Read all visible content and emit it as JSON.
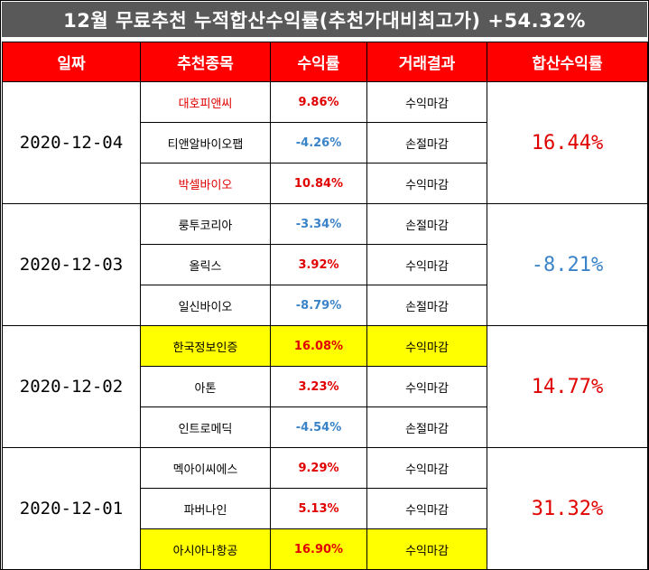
{
  "title": "12월 무료추천 누적합산수익률(추천가대비최고가) +54.32%",
  "headers": {
    "date": "일짜",
    "stock": "추천종목",
    "return": "수익률",
    "result": "거래결과",
    "total": "합산수익률"
  },
  "groups": [
    {
      "date": "2020-12-04",
      "total": "16.44%",
      "total_color": "#e00000",
      "rows": [
        {
          "stock": "대호피앤씨",
          "stock_color": "#e00000",
          "return": "9.86%",
          "return_color": "#e00000",
          "result": "수익마감",
          "highlight": false
        },
        {
          "stock": "티앤알바이오팹",
          "stock_color": "#000000",
          "return": "-4.26%",
          "return_color": "#3a83c8",
          "result": "손절마감",
          "highlight": false
        },
        {
          "stock": "박셀바이오",
          "stock_color": "#e00000",
          "return": "10.84%",
          "return_color": "#e00000",
          "result": "수익마감",
          "highlight": false
        }
      ]
    },
    {
      "date": "2020-12-03",
      "total": "-8.21%",
      "total_color": "#3a83c8",
      "rows": [
        {
          "stock": "룽투코리아",
          "stock_color": "#000000",
          "return": "-3.34%",
          "return_color": "#3a83c8",
          "result": "손절마감",
          "highlight": false
        },
        {
          "stock": "올릭스",
          "stock_color": "#000000",
          "return": "3.92%",
          "return_color": "#e00000",
          "result": "수익마감",
          "highlight": false
        },
        {
          "stock": "일신바이오",
          "stock_color": "#000000",
          "return": "-8.79%",
          "return_color": "#3a83c8",
          "result": "손절마감",
          "highlight": false
        }
      ]
    },
    {
      "date": "2020-12-02",
      "total": "14.77%",
      "total_color": "#e00000",
      "rows": [
        {
          "stock": "한국정보인증",
          "stock_color": "#000000",
          "return": "16.08%",
          "return_color": "#e00000",
          "result": "수익마감",
          "highlight": true
        },
        {
          "stock": "아톤",
          "stock_color": "#000000",
          "return": "3.23%",
          "return_color": "#e00000",
          "result": "수익마감",
          "highlight": false
        },
        {
          "stock": "인트로메딕",
          "stock_color": "#000000",
          "return": "-4.54%",
          "return_color": "#3a83c8",
          "result": "손절마감",
          "highlight": false
        }
      ]
    },
    {
      "date": "2020-12-01",
      "total": "31.32%",
      "total_color": "#e00000",
      "rows": [
        {
          "stock": "멕아이씨에스",
          "stock_color": "#000000",
          "return": "9.29%",
          "return_color": "#e00000",
          "result": "수익마감",
          "highlight": false
        },
        {
          "stock": "파버나인",
          "stock_color": "#000000",
          "return": "5.13%",
          "return_color": "#e00000",
          "result": "수익마감",
          "highlight": false
        },
        {
          "stock": "아시아나항공",
          "stock_color": "#000000",
          "return": "16.90%",
          "return_color": "#e00000",
          "result": "수익마감",
          "highlight": true
        }
      ]
    }
  ],
  "colors": {
    "title_bg": "#595959",
    "header_bg": "#ff0000",
    "highlight_bg": "#ffff00",
    "positive": "#e00000",
    "negative": "#3a83c8"
  }
}
